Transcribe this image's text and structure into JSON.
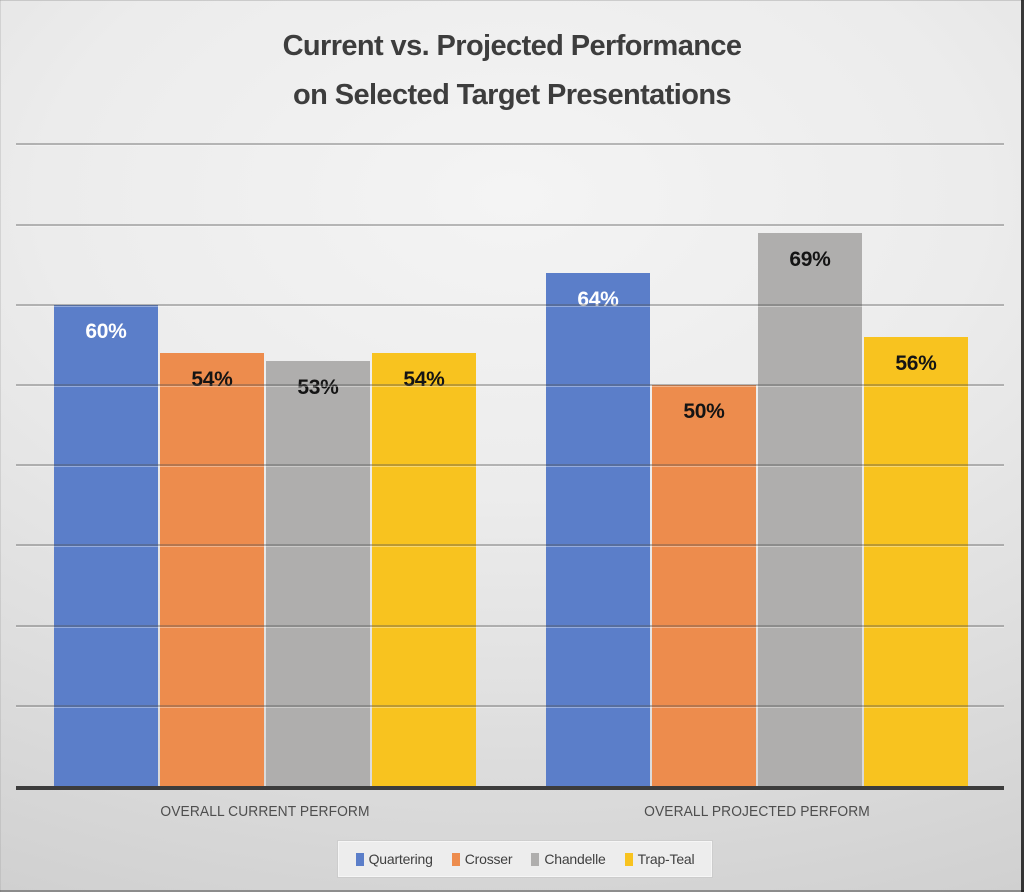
{
  "chart_data": {
    "type": "bar",
    "title": "Current vs. Projected Performance on Selected Target Presentations",
    "title_lines": [
      "Current vs. Projected Performance",
      "on Selected Target Presentations"
    ],
    "categories": [
      "OVERALL CURRENT PERFORM",
      "OVERALL PROJECTED PERFORM"
    ],
    "series": [
      {
        "name": "Quartering",
        "color": "#5B7EC9",
        "label_color": "#FFFFFF",
        "values": [
          60,
          64
        ]
      },
      {
        "name": "Crosser",
        "color": "#ED8C4D",
        "label_color": "#141414",
        "values": [
          54,
          50
        ]
      },
      {
        "name": "Chandelle",
        "color": "#AFAEAD",
        "label_color": "#141414",
        "values": [
          53,
          69
        ]
      },
      {
        "name": "Trap-Teal",
        "color": "#F8C31F",
        "label_color": "#141414",
        "values": [
          54,
          56
        ]
      }
    ],
    "value_suffix": "%",
    "axis": {
      "min": 0,
      "gridline_step": 10,
      "top_gridline": 80,
      "baseline_color": "#3C3C3C"
    },
    "legend": {
      "position": "bottom"
    },
    "xlabel": "",
    "ylabel": ""
  }
}
